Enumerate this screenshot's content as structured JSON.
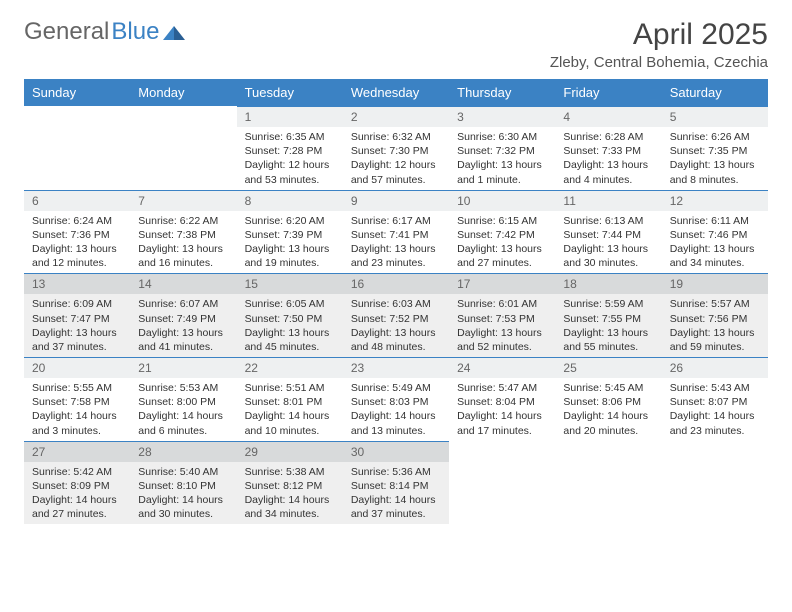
{
  "logo": {
    "part1": "General",
    "part2": "Blue"
  },
  "title": "April 2025",
  "location": "Zleby, Central Bohemia, Czechia",
  "colors": {
    "header_bg": "#3b82c4",
    "header_text": "#ffffff",
    "daynum_bg": "#eef0f1",
    "daynum_shade_bg": "#d8dadb",
    "body_shade_bg": "#efefef",
    "text": "#333333",
    "border": "#3b82c4"
  },
  "typography": {
    "title_size": 30,
    "subtitle_size": 15,
    "header_size": 13,
    "daynum_size": 12,
    "body_size": 10.5
  },
  "weekdays": [
    "Sunday",
    "Monday",
    "Tuesday",
    "Wednesday",
    "Thursday",
    "Friday",
    "Saturday"
  ],
  "first_day_col": 2,
  "days": [
    {
      "n": 1,
      "sr": "6:35 AM",
      "ss": "7:28 PM",
      "dl": "12 hours and 53 minutes."
    },
    {
      "n": 2,
      "sr": "6:32 AM",
      "ss": "7:30 PM",
      "dl": "12 hours and 57 minutes."
    },
    {
      "n": 3,
      "sr": "6:30 AM",
      "ss": "7:32 PM",
      "dl": "13 hours and 1 minute."
    },
    {
      "n": 4,
      "sr": "6:28 AM",
      "ss": "7:33 PM",
      "dl": "13 hours and 4 minutes."
    },
    {
      "n": 5,
      "sr": "6:26 AM",
      "ss": "7:35 PM",
      "dl": "13 hours and 8 minutes."
    },
    {
      "n": 6,
      "sr": "6:24 AM",
      "ss": "7:36 PM",
      "dl": "13 hours and 12 minutes."
    },
    {
      "n": 7,
      "sr": "6:22 AM",
      "ss": "7:38 PM",
      "dl": "13 hours and 16 minutes."
    },
    {
      "n": 8,
      "sr": "6:20 AM",
      "ss": "7:39 PM",
      "dl": "13 hours and 19 minutes."
    },
    {
      "n": 9,
      "sr": "6:17 AM",
      "ss": "7:41 PM",
      "dl": "13 hours and 23 minutes."
    },
    {
      "n": 10,
      "sr": "6:15 AM",
      "ss": "7:42 PM",
      "dl": "13 hours and 27 minutes."
    },
    {
      "n": 11,
      "sr": "6:13 AM",
      "ss": "7:44 PM",
      "dl": "13 hours and 30 minutes."
    },
    {
      "n": 12,
      "sr": "6:11 AM",
      "ss": "7:46 PM",
      "dl": "13 hours and 34 minutes."
    },
    {
      "n": 13,
      "sr": "6:09 AM",
      "ss": "7:47 PM",
      "dl": "13 hours and 37 minutes."
    },
    {
      "n": 14,
      "sr": "6:07 AM",
      "ss": "7:49 PM",
      "dl": "13 hours and 41 minutes."
    },
    {
      "n": 15,
      "sr": "6:05 AM",
      "ss": "7:50 PM",
      "dl": "13 hours and 45 minutes."
    },
    {
      "n": 16,
      "sr": "6:03 AM",
      "ss": "7:52 PM",
      "dl": "13 hours and 48 minutes."
    },
    {
      "n": 17,
      "sr": "6:01 AM",
      "ss": "7:53 PM",
      "dl": "13 hours and 52 minutes."
    },
    {
      "n": 18,
      "sr": "5:59 AM",
      "ss": "7:55 PM",
      "dl": "13 hours and 55 minutes."
    },
    {
      "n": 19,
      "sr": "5:57 AM",
      "ss": "7:56 PM",
      "dl": "13 hours and 59 minutes."
    },
    {
      "n": 20,
      "sr": "5:55 AM",
      "ss": "7:58 PM",
      "dl": "14 hours and 3 minutes."
    },
    {
      "n": 21,
      "sr": "5:53 AM",
      "ss": "8:00 PM",
      "dl": "14 hours and 6 minutes."
    },
    {
      "n": 22,
      "sr": "5:51 AM",
      "ss": "8:01 PM",
      "dl": "14 hours and 10 minutes."
    },
    {
      "n": 23,
      "sr": "5:49 AM",
      "ss": "8:03 PM",
      "dl": "14 hours and 13 minutes."
    },
    {
      "n": 24,
      "sr": "5:47 AM",
      "ss": "8:04 PM",
      "dl": "14 hours and 17 minutes."
    },
    {
      "n": 25,
      "sr": "5:45 AM",
      "ss": "8:06 PM",
      "dl": "14 hours and 20 minutes."
    },
    {
      "n": 26,
      "sr": "5:43 AM",
      "ss": "8:07 PM",
      "dl": "14 hours and 23 minutes."
    },
    {
      "n": 27,
      "sr": "5:42 AM",
      "ss": "8:09 PM",
      "dl": "14 hours and 27 minutes."
    },
    {
      "n": 28,
      "sr": "5:40 AM",
      "ss": "8:10 PM",
      "dl": "14 hours and 30 minutes."
    },
    {
      "n": 29,
      "sr": "5:38 AM",
      "ss": "8:12 PM",
      "dl": "14 hours and 34 minutes."
    },
    {
      "n": 30,
      "sr": "5:36 AM",
      "ss": "8:14 PM",
      "dl": "14 hours and 37 minutes."
    }
  ],
  "labels": {
    "sunrise": "Sunrise:",
    "sunset": "Sunset:",
    "daylight": "Daylight:"
  },
  "shade_rows": [
    2,
    4
  ]
}
